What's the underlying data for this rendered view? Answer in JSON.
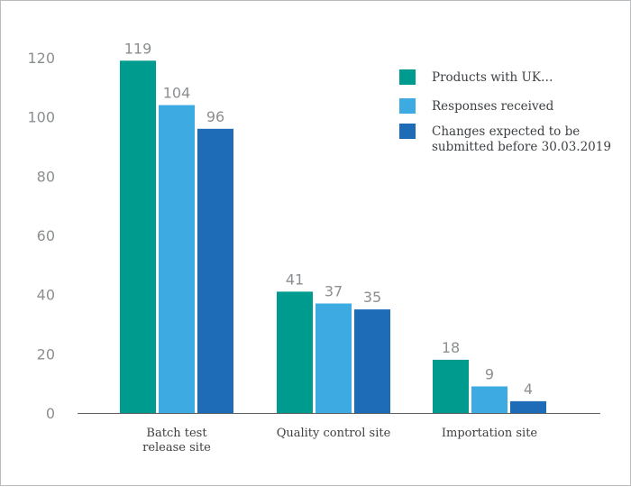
{
  "chart_data": {
    "type": "bar",
    "categories": [
      [
        "Batch test",
        "release site"
      ],
      [
        "Quality control site"
      ],
      [
        "Importation site"
      ]
    ],
    "series": [
      {
        "name": "Products with UK…",
        "color": "#009b8f",
        "values": [
          119,
          41,
          18
        ]
      },
      {
        "name": "Responses received",
        "color": "#3daae2",
        "values": [
          104,
          37,
          9
        ]
      },
      {
        "name": [
          "Changes expected to be",
          "submitted before 30.03.2019"
        ],
        "color": "#1e6bb8",
        "values": [
          96,
          35,
          4
        ]
      }
    ],
    "yticks": [
      0,
      20,
      40,
      60,
      80,
      100,
      120
    ],
    "ylim": [
      0,
      120
    ],
    "grid": false,
    "legend_position": "top-right"
  }
}
